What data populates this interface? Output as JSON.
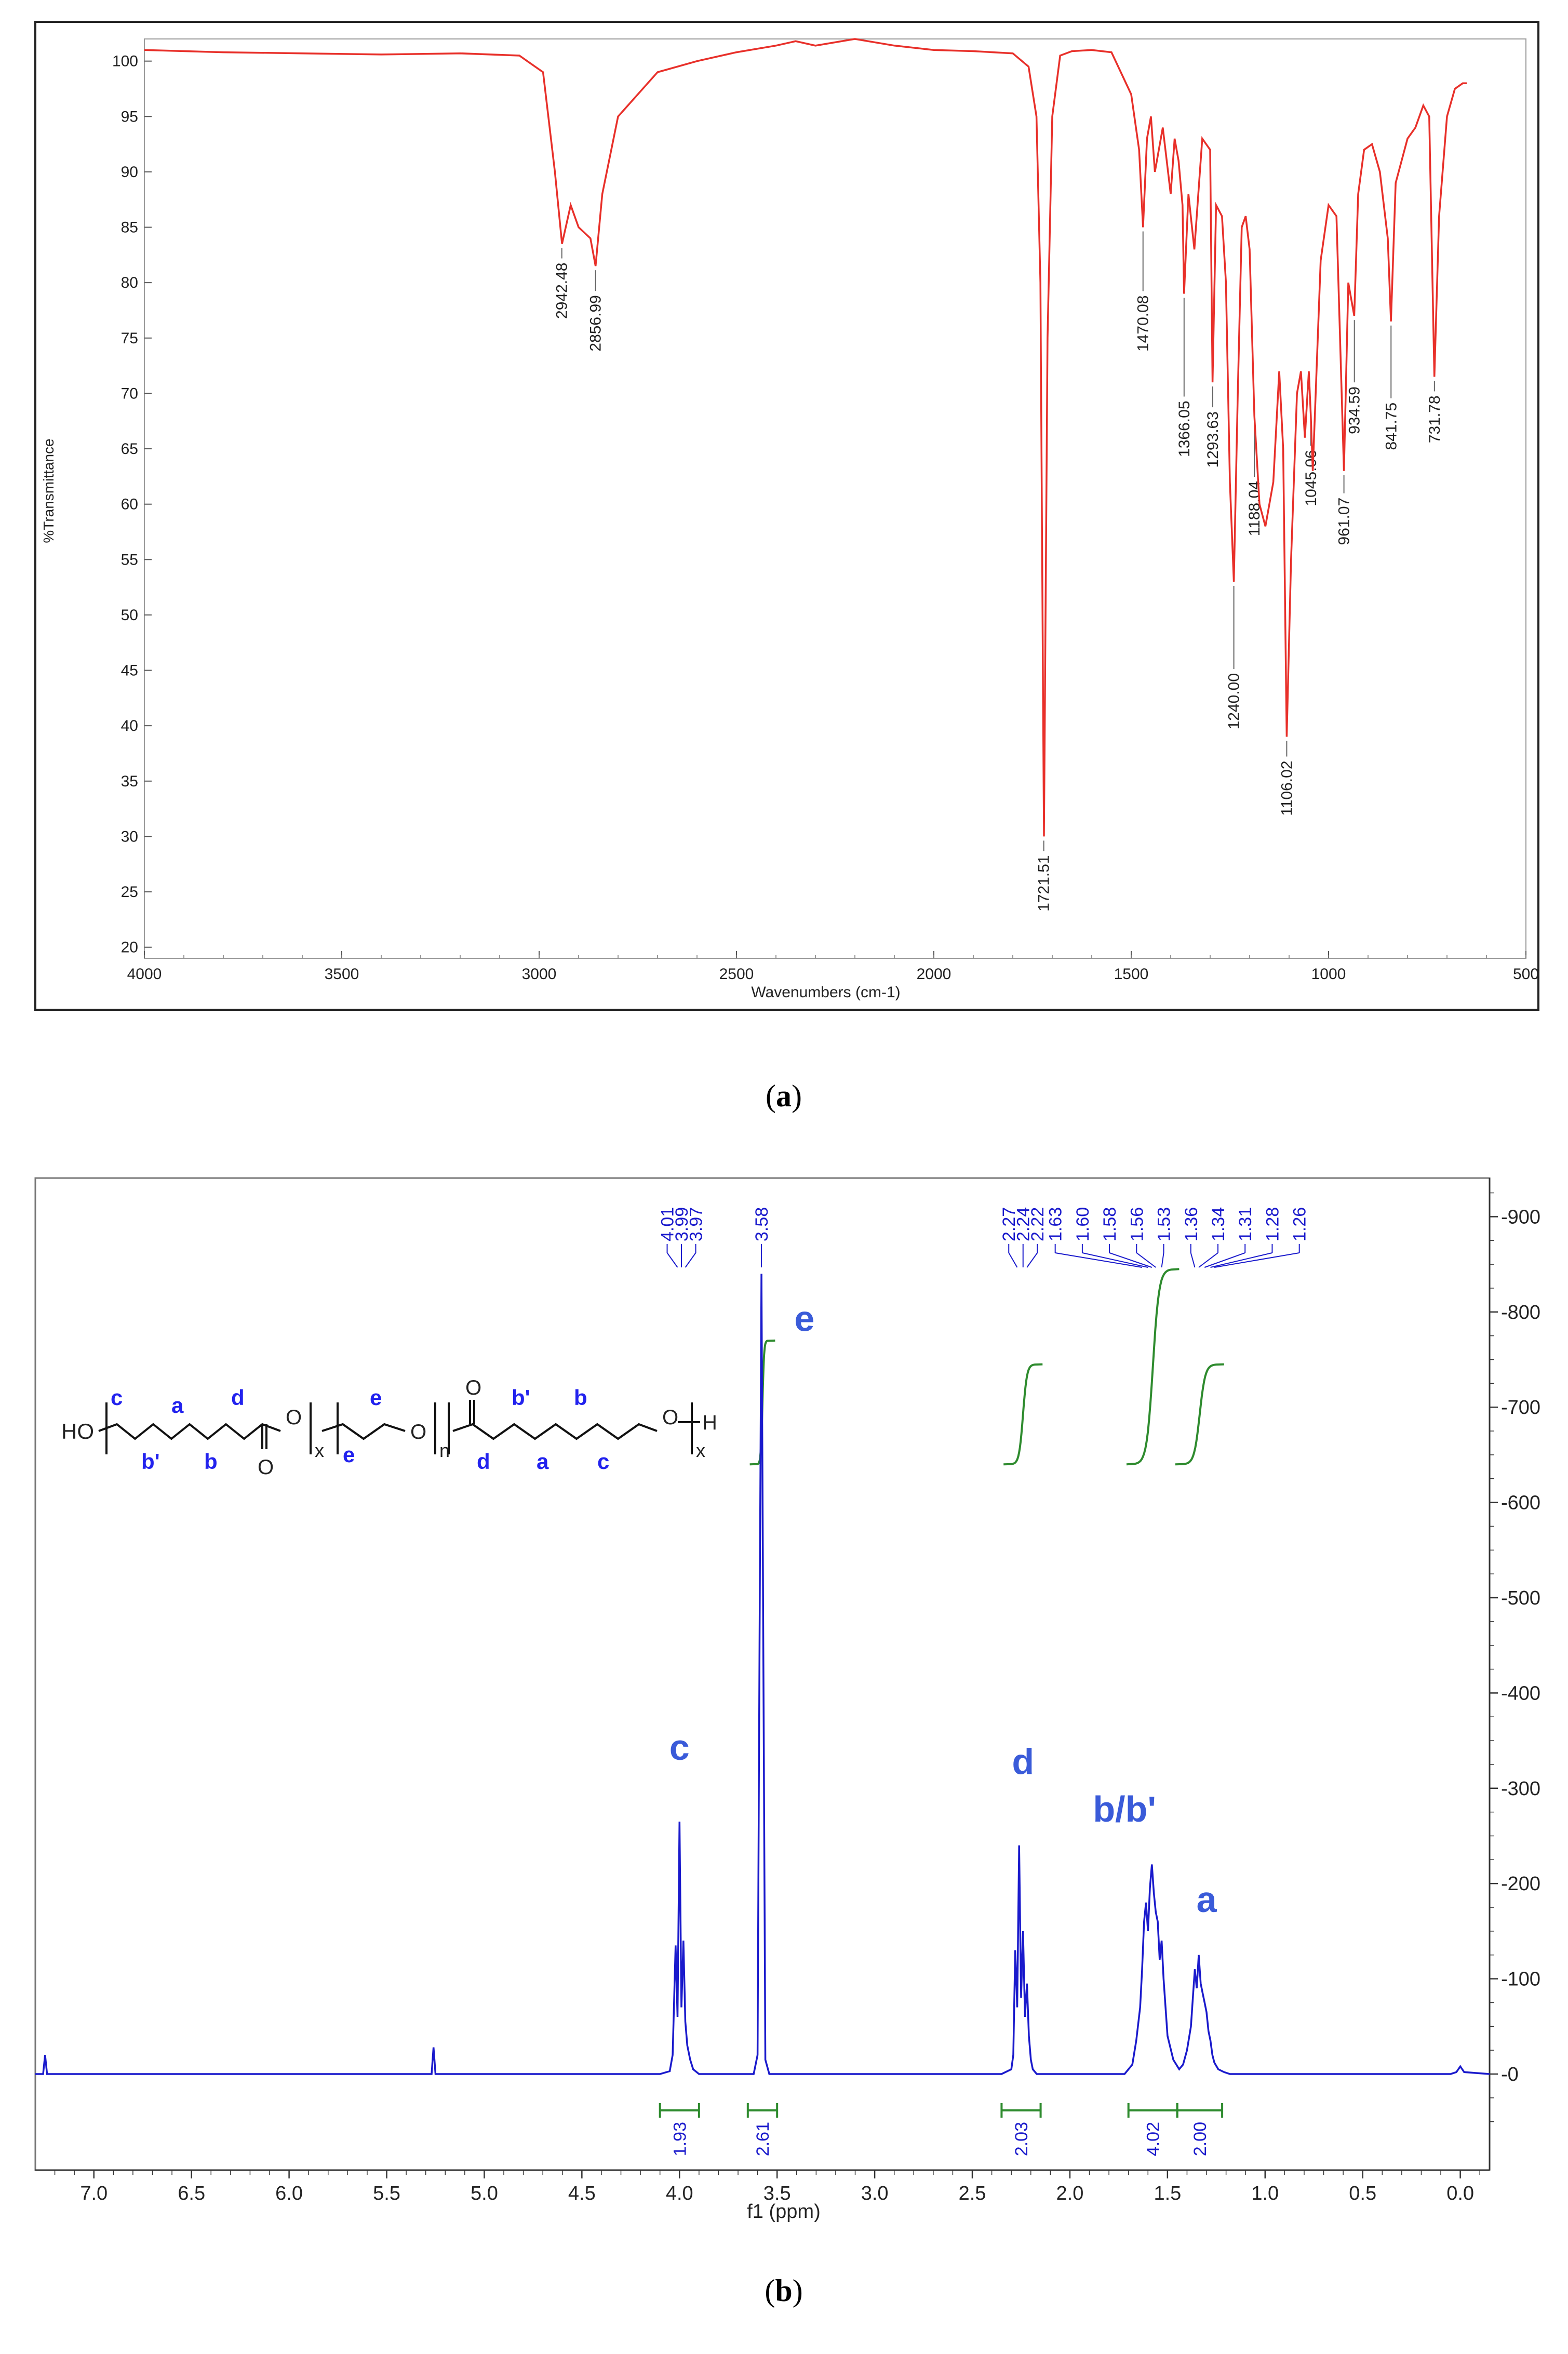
{
  "panels": {
    "a_label": "a",
    "b_label": "b"
  },
  "chart_data": [
    {
      "type": "line",
      "xlabel": "Wavenumbers (cm-1)",
      "ylabel": "%Transmittance",
      "xlim": [
        4000,
        500
      ],
      "ylim": [
        20,
        102
      ],
      "x_reversed": true,
      "x_ticks": [
        4000,
        3500,
        3000,
        2500,
        2000,
        1500,
        1000,
        500
      ],
      "y_ticks": [
        20,
        25,
        30,
        35,
        40,
        45,
        50,
        55,
        60,
        65,
        70,
        75,
        80,
        85,
        90,
        95,
        100
      ],
      "line_color": "#e8302a",
      "series": [
        {
          "x": [
            4000,
            3800,
            3600,
            3400,
            3200,
            3050,
            2990,
            2960,
            2942,
            2920,
            2900,
            2870,
            2857,
            2840,
            2800,
            2700,
            2600,
            2500,
            2400,
            2350,
            2300,
            2200,
            2100,
            2000,
            1900,
            1800,
            1760,
            1740,
            1730,
            1721,
            1712,
            1700,
            1680,
            1650,
            1600,
            1550,
            1500,
            1480,
            1470,
            1460,
            1450,
            1440,
            1420,
            1400,
            1390,
            1380,
            1370,
            1366,
            1355,
            1340,
            1320,
            1300,
            1294,
            1285,
            1270,
            1260,
            1250,
            1240,
            1230,
            1220,
            1210,
            1200,
            1188,
            1175,
            1160,
            1140,
            1125,
            1115,
            1106,
            1095,
            1080,
            1070,
            1060,
            1050,
            1045,
            1040,
            1020,
            1000,
            980,
            961,
            950,
            940,
            935,
            925,
            910,
            890,
            870,
            850,
            842,
            830,
            800,
            780,
            760,
            745,
            732,
            720,
            700,
            680,
            660,
            650
          ],
          "y": [
            101.0,
            100.8,
            100.7,
            100.6,
            100.7,
            100.5,
            99.0,
            90.0,
            83.5,
            87.0,
            85.0,
            84.0,
            81.5,
            88.0,
            95.0,
            99.0,
            100.0,
            100.8,
            101.4,
            101.8,
            101.4,
            102.0,
            101.4,
            101.0,
            100.9,
            100.7,
            99.5,
            95.0,
            80.0,
            30.0,
            75.0,
            95.0,
            100.5,
            100.9,
            101.0,
            100.8,
            97.0,
            92.0,
            85.0,
            93.0,
            95.0,
            90.0,
            94.0,
            88.0,
            93.0,
            91.0,
            87.0,
            79.0,
            88.0,
            83.0,
            93.0,
            92.0,
            71.0,
            87.0,
            86.0,
            80.0,
            62.0,
            53.0,
            70.0,
            85.0,
            86.0,
            83.0,
            68.0,
            60.0,
            58.0,
            62.0,
            72.0,
            65.0,
            39.0,
            55.0,
            70.0,
            72.0,
            66.0,
            72.0,
            68.0,
            63.0,
            82.0,
            87.0,
            86.0,
            63.0,
            80.0,
            78.0,
            77.0,
            88.0,
            92.0,
            92.5,
            90.0,
            84.0,
            76.5,
            89.0,
            93.0,
            94.0,
            96.0,
            95.0,
            71.5,
            86.0,
            95.0,
            97.5,
            98.0,
            98.0
          ]
        }
      ],
      "peak_labels": [
        {
          "x": 2942.48,
          "y": 83.5,
          "text": "2942.48"
        },
        {
          "x": 2856.99,
          "y": 81.5,
          "text": "2856.99"
        },
        {
          "x": 1721.51,
          "y": 30.0,
          "text": "1721.51"
        },
        {
          "x": 1470.08,
          "y": 85.0,
          "text": "1470.08"
        },
        {
          "x": 1366.05,
          "y": 79.0,
          "text": "1366.05"
        },
        {
          "x": 1293.63,
          "y": 71.0,
          "text": "1293.63"
        },
        {
          "x": 1240.0,
          "y": 53.0,
          "text": "1240.00"
        },
        {
          "x": 1188.04,
          "y": 68.0,
          "text": "1188.04"
        },
        {
          "x": 1106.02,
          "y": 39.0,
          "text": "1106.02"
        },
        {
          "x": 1045.06,
          "y": 68.0,
          "text": "1045.06"
        },
        {
          "x": 961.07,
          "y": 63.0,
          "text": "961.07"
        },
        {
          "x": 934.59,
          "y": 77.0,
          "text": "934.59"
        },
        {
          "x": 841.75,
          "y": 76.5,
          "text": "841.75"
        },
        {
          "x": 731.78,
          "y": 71.5,
          "text": "731.78"
        }
      ]
    },
    {
      "type": "line",
      "xlabel": "f1 (ppm)",
      "xlim": [
        7.3,
        -0.15
      ],
      "ylim": [
        -80,
        950
      ],
      "x_reversed": true,
      "x_ticks": [
        "7.0",
        "6.5",
        "6.0",
        "5.5",
        "5.0",
        "4.5",
        "4.0",
        "3.5",
        "3.0",
        "2.5",
        "2.0",
        "1.5",
        "1.0",
        "0.5",
        "0.0"
      ],
      "y_ticks": [
        0,
        100,
        200,
        300,
        400,
        500,
        600,
        700,
        800,
        900
      ],
      "line_color": "#1a1acc",
      "integral_color": "#2e8b2e",
      "series": [
        {
          "x": [
            7.3,
            7.26,
            7.25,
            7.24,
            7.2,
            5.3,
            5.27,
            5.26,
            5.25,
            5.2,
            4.1,
            4.05,
            4.035,
            4.02,
            4.01,
            4.0,
            3.99,
            3.98,
            3.97,
            3.96,
            3.945,
            3.93,
            3.9,
            3.62,
            3.6,
            3.59,
            3.58,
            3.57,
            3.56,
            3.54,
            2.35,
            2.3,
            2.29,
            2.28,
            2.27,
            2.26,
            2.25,
            2.24,
            2.23,
            2.22,
            2.21,
            2.2,
            2.19,
            2.17,
            1.72,
            1.68,
            1.66,
            1.64,
            1.63,
            1.62,
            1.61,
            1.6,
            1.59,
            1.58,
            1.57,
            1.56,
            1.55,
            1.54,
            1.53,
            1.52,
            1.5,
            1.47,
            1.44,
            1.42,
            1.4,
            1.38,
            1.37,
            1.36,
            1.35,
            1.34,
            1.33,
            1.32,
            1.31,
            1.3,
            1.29,
            1.28,
            1.27,
            1.26,
            1.24,
            1.21,
            1.18,
            0.05,
            0.02,
            0.0,
            -0.02,
            -0.15
          ],
          "y": [
            0,
            0,
            20,
            0,
            0,
            0,
            0,
            28,
            0,
            0,
            0,
            3,
            20,
            135,
            60,
            265,
            70,
            140,
            55,
            30,
            15,
            5,
            0,
            0,
            20,
            450,
            840,
            420,
            15,
            0,
            0,
            5,
            20,
            130,
            70,
            240,
            80,
            150,
            60,
            95,
            40,
            15,
            5,
            0,
            0,
            10,
            35,
            70,
            110,
            160,
            180,
            150,
            195,
            220,
            190,
            170,
            160,
            120,
            140,
            100,
            40,
            15,
            5,
            10,
            25,
            50,
            80,
            110,
            90,
            125,
            95,
            85,
            75,
            65,
            45,
            35,
            20,
            12,
            5,
            2,
            0,
            0,
            2,
            8,
            2,
            0
          ]
        }
      ],
      "peak_annotations": [
        "c",
        "e",
        "d",
        "b/b'",
        "a"
      ],
      "peak_annotation_positions": [
        {
          "x": 4.0,
          "y": 330
        },
        {
          "x": 3.36,
          "y": 780
        },
        {
          "x": 2.24,
          "y": 315
        },
        {
          "x": 1.72,
          "y": 265
        },
        {
          "x": 1.3,
          "y": 170
        }
      ],
      "ppm_labels_top": [
        "4.01",
        "3.99",
        "3.97",
        "3.58",
        "2.27",
        "2.24",
        "2.22",
        "1.63",
        "1.60",
        "1.58",
        "1.56",
        "1.53",
        "1.36",
        "1.34",
        "1.31",
        "1.28",
        "1.26"
      ],
      "integrals": [
        {
          "range": [
            4.1,
            3.9
          ],
          "value": "1.93"
        },
        {
          "range": [
            3.65,
            3.5
          ],
          "value": "2.61"
        },
        {
          "range": [
            2.35,
            2.15
          ],
          "value": "2.03"
        },
        {
          "range": [
            1.7,
            1.45
          ],
          "value": "4.02"
        },
        {
          "range": [
            1.45,
            1.22
          ],
          "value": "2.00"
        }
      ],
      "integral_curves": [
        {
          "range": [
            3.6,
            3.55
          ],
          "base": 640,
          "top": 770,
          "label_cap": "-"
        },
        {
          "range": [
            2.3,
            2.18
          ],
          "base": 640,
          "top": 745
        },
        {
          "range": [
            1.67,
            1.48
          ],
          "base": 640,
          "top": 845
        },
        {
          "range": [
            1.42,
            1.25
          ],
          "base": 640,
          "top": 745
        }
      ],
      "structure": {
        "ho": "HO",
        "h": "H",
        "o_labels": [
          "O",
          "O",
          "O",
          "O",
          "O"
        ],
        "subscripts": [
          "x",
          "n",
          "x"
        ],
        "letters": [
          "c",
          "a",
          "d",
          "e",
          "b'",
          "b",
          "b'",
          "b",
          "e",
          "d",
          "a",
          "c"
        ]
      }
    }
  ]
}
